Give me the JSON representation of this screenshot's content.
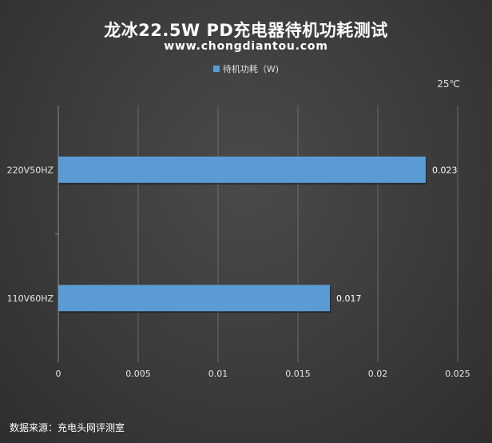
{
  "header": {
    "title": "龙冰22.5W PD充电器待机功耗测试",
    "subtitle": "www.chongdiantou.com"
  },
  "legend": {
    "label": "待机功耗（W)"
  },
  "note": {
    "temperature": "25℃"
  },
  "footer": {
    "source": "数据来源：充电头网评测室"
  },
  "chart_data": {
    "type": "bar",
    "orientation": "horizontal",
    "title": "龙冰22.5W PD充电器待机功耗测试",
    "subtitle": "www.chongdiantou.com",
    "categories": [
      "220V50HZ",
      "110V60HZ"
    ],
    "series": [
      {
        "name": "待机功耗（W)",
        "values": [
          0.023,
          0.017
        ],
        "color": "#5b9bd5"
      }
    ],
    "data_labels": [
      "0.023",
      "0.017"
    ],
    "x_ticks": [
      "0",
      "0.005",
      "0.01",
      "0.015",
      "0.02",
      "0.025"
    ],
    "x_tick_values": [
      0,
      0.005,
      0.01,
      0.015,
      0.02,
      0.025
    ],
    "xlim": [
      0,
      0.025
    ],
    "grid": true,
    "legend_position": "top"
  }
}
